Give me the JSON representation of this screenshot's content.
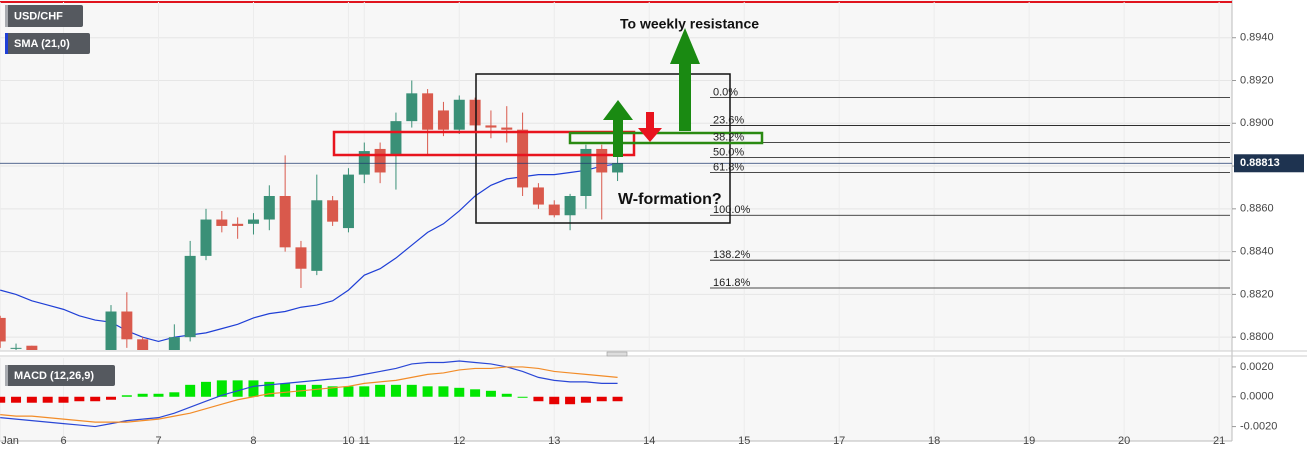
{
  "chart_data": [
    {
      "type": "candlestick",
      "title": "USD/CHF",
      "categories": [
        "Jan",
        null,
        null,
        null,
        "6",
        null,
        null,
        null,
        null,
        null,
        "7",
        null,
        null,
        null,
        null,
        null,
        "8",
        null,
        null,
        null,
        null,
        null,
        "10",
        "11",
        null,
        null,
        null,
        null,
        null,
        "12",
        null,
        null,
        null,
        null,
        null,
        "13",
        null,
        null,
        null,
        null,
        null,
        "14",
        null,
        null,
        null,
        null,
        null,
        "15",
        null,
        null,
        null,
        null,
        null,
        "17",
        null,
        null,
        null,
        null,
        null,
        "18",
        null,
        null,
        null,
        null,
        null,
        "19",
        null,
        null,
        null,
        null,
        null,
        "20",
        null,
        null,
        null,
        null,
        null,
        "21"
      ],
      "open": [
        0.8809,
        0.8795,
        0.8796,
        null,
        null,
        null,
        null,
        0.8793,
        0.8812,
        0.8799,
        null,
        0.8794,
        0.88,
        0.8838,
        0.8855,
        0.8853,
        0.8853,
        0.8855,
        0.8866,
        0.8842,
        0.8831,
        0.8864,
        0.8851,
        0.8876,
        0.8888,
        0.8885,
        0.8901,
        0.8914,
        0.8906,
        0.8897,
        0.8911,
        0.8899,
        0.8898,
        0.8897,
        0.887,
        0.8862,
        0.8857,
        0.8866,
        0.8888,
        0.8877,
        null,
        null,
        null,
        null,
        null,
        null,
        null,
        null,
        null,
        null,
        null,
        null,
        null,
        null,
        null,
        null,
        null,
        null,
        null,
        null,
        null,
        null,
        null,
        null,
        null,
        null,
        null,
        null,
        null,
        null,
        null,
        null,
        null,
        null,
        null,
        null,
        null,
        null
      ],
      "high": [
        0.881,
        0.8797,
        0.8796,
        null,
        null,
        null,
        null,
        0.8815,
        0.8821,
        0.88,
        null,
        0.8806,
        0.8845,
        0.886,
        0.8859,
        0.8856,
        0.8858,
        0.8871,
        0.8885,
        0.8845,
        0.8876,
        0.8866,
        0.8879,
        0.8891,
        0.8891,
        0.8905,
        0.892,
        0.8916,
        0.891,
        0.8913,
        0.8912,
        0.8906,
        0.8908,
        0.8905,
        0.8872,
        0.8864,
        0.8867,
        0.889,
        0.889,
        0.8886,
        null,
        null,
        null,
        null,
        null,
        null,
        null,
        null,
        null,
        null,
        null,
        null,
        null,
        null,
        null,
        null,
        null,
        null,
        null,
        null,
        null,
        null,
        null,
        null,
        null,
        null,
        null,
        null,
        null,
        null,
        null,
        null,
        null,
        null,
        null,
        null,
        null,
        null
      ],
      "low": [
        0.8795,
        0.8793,
        0.8792,
        null,
        null,
        null,
        null,
        0.879,
        0.8795,
        0.8792,
        null,
        0.8792,
        0.8798,
        0.8836,
        0.8849,
        0.8846,
        0.8848,
        0.885,
        0.884,
        0.8823,
        0.8829,
        0.8852,
        0.8849,
        0.8872,
        0.8872,
        0.8869,
        0.8898,
        0.8885,
        0.8894,
        0.8895,
        0.8896,
        0.8893,
        0.8891,
        0.8866,
        0.886,
        0.8856,
        0.885,
        0.886,
        0.8855,
        0.8873,
        null,
        null,
        null,
        null,
        null,
        null,
        null,
        null,
        null,
        null,
        null,
        null,
        null,
        null,
        null,
        null,
        null,
        null,
        null,
        null,
        null,
        null,
        null,
        null,
        null,
        null,
        null,
        null,
        null,
        null,
        null,
        null,
        null,
        null,
        null,
        null,
        null,
        null
      ],
      "close": [
        0.8798,
        0.8795,
        0.8794,
        null,
        null,
        null,
        null,
        0.8812,
        0.8799,
        0.8794,
        null,
        0.88,
        0.8838,
        0.8855,
        0.8852,
        0.8852,
        0.8855,
        0.8866,
        0.8842,
        0.8832,
        0.8864,
        0.8854,
        0.8876,
        0.8887,
        0.8877,
        0.8901,
        0.8914,
        0.8897,
        0.8897,
        0.8911,
        0.8899,
        0.8898,
        0.8897,
        0.887,
        0.8862,
        0.8857,
        0.8866,
        0.8888,
        0.8877,
        0.88813,
        null,
        null,
        null,
        null,
        null,
        null,
        null,
        null,
        null,
        null,
        null,
        null,
        null,
        null,
        null,
        null,
        null,
        null,
        null,
        null,
        null,
        null,
        null,
        null,
        null,
        null,
        null,
        null,
        null,
        null,
        null,
        null,
        null,
        null,
        null,
        null,
        null,
        null
      ],
      "up_color": "#3a9077",
      "down_color": "#d9594c",
      "series": [
        {
          "name": "SMA (21,0)",
          "color": "#1f3fd6",
          "values": [
            0.8822,
            0.882,
            0.8817,
            0.8815,
            0.8813,
            0.881,
            0.8808,
            0.8807,
            0.8803,
            0.88,
            0.8798,
            0.88,
            0.8801,
            0.8802,
            0.8804,
            0.8806,
            0.8809,
            0.8811,
            0.8812,
            0.8814,
            0.8815,
            0.8817,
            0.8822,
            0.8829,
            0.8832,
            0.8837,
            0.8843,
            0.8849,
            0.8853,
            0.8859,
            0.8866,
            0.8871,
            0.8874,
            0.8875,
            0.8876,
            0.8876,
            0.8877,
            0.8878,
            0.888,
            0.8881,
            null,
            null,
            null,
            null,
            null,
            null,
            null,
            null,
            null,
            null,
            null,
            null,
            null,
            null,
            null,
            null,
            null,
            null,
            null,
            null,
            null,
            null,
            null,
            null,
            null,
            null,
            null,
            null,
            null,
            null,
            null,
            null,
            null,
            null,
            null,
            null,
            null,
            null
          ]
        }
      ],
      "ylim": [
        0.8794,
        0.89567
      ],
      "yticks": [
        {
          "value": 0.88,
          "label": "0.8800"
        },
        {
          "value": 0.882,
          "label": "0.8820"
        },
        {
          "value": 0.884,
          "label": "0.8840"
        },
        {
          "value": 0.886,
          "label": "0.8860"
        },
        {
          "value": 0.888,
          "label": "0.8880"
        },
        {
          "value": 0.89,
          "label": "0.8900"
        },
        {
          "value": 0.892,
          "label": "0.8920"
        },
        {
          "value": 0.894,
          "label": "0.8940"
        }
      ],
      "grid": true,
      "last_price": 0.88813,
      "fib_levels": [
        {
          "label": "0.0%",
          "value": 0.8912
        },
        {
          "label": "23.6%",
          "value": 0.8899
        },
        {
          "label": "38.2%",
          "value": 0.8891
        },
        {
          "label": "50.0%",
          "value": 0.8884
        },
        {
          "label": "61.8%",
          "value": 0.8877
        },
        {
          "label": "100.0%",
          "value": 0.8857
        },
        {
          "label": "138.2%",
          "value": 0.8836
        },
        {
          "label": "161.8%",
          "value": 0.8823
        }
      ],
      "annotations": [
        "To weekly resistance",
        "W-formation?"
      ]
    },
    {
      "type": "macd",
      "title": "MACD (12,26,9)",
      "histogram": {
        "positive_color": "#00e600",
        "negative_color": "#e60000",
        "values": [
          -0.0004,
          -0.0004,
          -0.0004,
          -0.0004,
          -0.0004,
          -0.0003,
          -0.0003,
          -0.0002,
          0.0001,
          0.0002,
          0.0002,
          0.0003,
          0.0008,
          0.001,
          0.0011,
          0.0011,
          0.0011,
          0.001,
          0.0009,
          0.0008,
          0.0008,
          0.0007,
          0.0007,
          0.0007,
          0.0008,
          0.0008,
          0.0008,
          0.0007,
          0.0007,
          0.0006,
          0.0005,
          0.0004,
          0.0002,
          0.0,
          -0.0003,
          -0.0005,
          -0.0005,
          -0.0004,
          -0.0003,
          -0.0003,
          null,
          null,
          null,
          null,
          null,
          null,
          null,
          null,
          null,
          null,
          null,
          null,
          null,
          null,
          null,
          null,
          null,
          null,
          null,
          null,
          null,
          null,
          null,
          null,
          null,
          null,
          null,
          null,
          null,
          null,
          null,
          null,
          null,
          null,
          null,
          null,
          null,
          null
        ]
      },
      "series": [
        {
          "color": "#2a47d6",
          "values": [
            -0.0014,
            -0.0015,
            -0.0016,
            -0.0017,
            -0.0018,
            -0.0019,
            -0.002,
            -0.0018,
            -0.0016,
            -0.0015,
            -0.0014,
            -0.0011,
            -0.0007,
            -0.0003,
            0.0001,
            0.0004,
            0.0007,
            0.0008,
            0.0009,
            0.001,
            0.0011,
            0.0012,
            0.0013,
            0.0015,
            0.0017,
            0.0019,
            0.0022,
            0.0023,
            0.0023,
            0.0024,
            0.0023,
            0.0022,
            0.002,
            0.0017,
            0.0013,
            0.0011,
            0.001,
            0.001,
            0.0009,
            0.0009,
            null,
            null,
            null,
            null,
            null,
            null,
            null,
            null,
            null,
            null,
            null,
            null,
            null,
            null,
            null,
            null,
            null,
            null,
            null,
            null,
            null,
            null,
            null,
            null,
            null,
            null,
            null,
            null,
            null,
            null,
            null,
            null,
            null,
            null,
            null,
            null,
            null,
            null
          ]
        },
        {
          "color": "#f28c28",
          "values": [
            -0.0012,
            -0.0013,
            -0.0013,
            -0.0014,
            -0.0015,
            -0.0016,
            -0.0017,
            -0.0017,
            -0.0017,
            -0.0016,
            -0.0015,
            -0.0013,
            -0.0011,
            -0.0008,
            -0.0005,
            -0.0002,
            0.0,
            0.0002,
            0.0003,
            0.0004,
            0.0005,
            0.0006,
            0.0007,
            0.0009,
            0.001,
            0.0011,
            0.0013,
            0.0015,
            0.0016,
            0.0018,
            0.0019,
            0.0019,
            0.002,
            0.002,
            0.0019,
            0.0017,
            0.0016,
            0.0015,
            0.0014,
            0.0013,
            null,
            null,
            null,
            null,
            null,
            null,
            null,
            null,
            null,
            null,
            null,
            null,
            null,
            null,
            null,
            null,
            null,
            null,
            null,
            null,
            null,
            null,
            null,
            null,
            null,
            null,
            null,
            null,
            null,
            null,
            null,
            null,
            null,
            null,
            null,
            null,
            null,
            null
          ]
        }
      ],
      "ylim": [
        -0.0029,
        0.0026
      ],
      "yticks": [
        {
          "value": -0.002,
          "label": "-0.0020"
        },
        {
          "value": 0,
          "label": "0.0000"
        },
        {
          "value": 0.002,
          "label": "0.0020"
        }
      ]
    }
  ]
}
